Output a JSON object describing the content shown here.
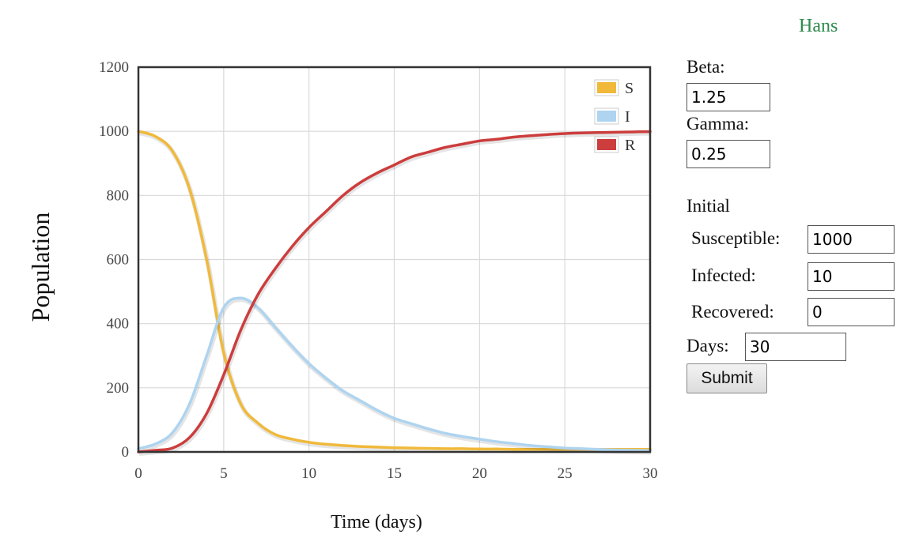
{
  "user": {
    "name": "Hans"
  },
  "form": {
    "beta_label": "Beta:",
    "beta_value": "1.25",
    "gamma_label": "Gamma:",
    "gamma_value": "0.25",
    "initial_heading": "Initial",
    "susceptible_label": "Susceptible:",
    "susceptible_value": "1000",
    "infected_label": "Infected:",
    "infected_value": "10",
    "recovered_label": "Recovered:",
    "recovered_value": "0",
    "days_label": "Days:",
    "days_value": "30",
    "submit_label": "Submit"
  },
  "chart_data": {
    "type": "line",
    "title": "",
    "xlabel": "Time (days)",
    "ylabel": "Population",
    "xlim": [
      0,
      30
    ],
    "ylim": [
      0,
      1200
    ],
    "xticks": [
      0,
      5,
      10,
      15,
      20,
      25,
      30
    ],
    "yticks": [
      0,
      200,
      400,
      600,
      800,
      1000,
      1200
    ],
    "grid": true,
    "legend_position": "top-right",
    "x": [
      0,
      1,
      2,
      3,
      4,
      5,
      6,
      7,
      8,
      9,
      10,
      11,
      12,
      13,
      14,
      15,
      16,
      17,
      18,
      19,
      20,
      21,
      22,
      23,
      24,
      25,
      26,
      27,
      28,
      29,
      30
    ],
    "series": [
      {
        "name": "S",
        "color": "#f0b93a",
        "values": [
          1000,
          984,
          938,
          820,
          600,
          310,
          150,
          90,
          55,
          40,
          30,
          24,
          20,
          17,
          15,
          13,
          12,
          11,
          10,
          10,
          9,
          9,
          8,
          8,
          8,
          8,
          8,
          8,
          8,
          8,
          8
        ]
      },
      {
        "name": "I",
        "color": "#aed4f0",
        "values": [
          10,
          25,
          60,
          150,
          300,
          450,
          480,
          450,
          390,
          330,
          275,
          230,
          190,
          160,
          130,
          105,
          88,
          72,
          58,
          48,
          40,
          32,
          26,
          20,
          16,
          12,
          10,
          8,
          6,
          5,
          4
        ]
      },
      {
        "name": "R",
        "color": "#cc3d3d",
        "values": [
          0,
          5,
          12,
          45,
          120,
          240,
          380,
          490,
          570,
          640,
          700,
          750,
          800,
          840,
          870,
          895,
          920,
          935,
          950,
          960,
          970,
          975,
          982,
          986,
          990,
          993,
          995,
          996,
          997,
          998,
          999
        ]
      }
    ]
  }
}
